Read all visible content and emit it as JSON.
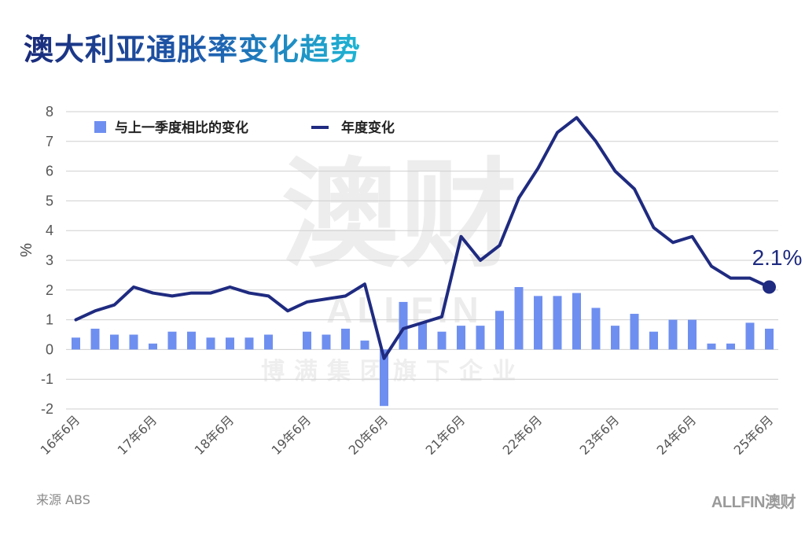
{
  "title": "澳大利亚通胀率变化趋势",
  "source": "来源 ABS",
  "brand": "ALLFIN澳财",
  "watermark": {
    "main": "澳财",
    "sub": "ALLFIN",
    "tagline": "博满集团旗下企业"
  },
  "chart_data": {
    "type": "bar+line",
    "ylabel": "%",
    "ylim": [
      -2,
      8
    ],
    "yticks": [
      -2,
      -1,
      0,
      1,
      2,
      3,
      4,
      5,
      6,
      7,
      8
    ],
    "grid": true,
    "legend_position": "top-left",
    "x_tick_labels": [
      "16年6月",
      "17年6月",
      "18年6月",
      "19年6月",
      "20年6月",
      "21年6月",
      "22年6月",
      "23年6月",
      "24年6月",
      "25年6月"
    ],
    "series": [
      {
        "name": "与上一季度相比的变化",
        "type": "bar",
        "color": "#6f8ff0",
        "values": [
          0.4,
          0.7,
          0.5,
          0.5,
          0.2,
          0.6,
          0.6,
          0.4,
          0.4,
          0.4,
          0.5,
          null,
          0.6,
          0.5,
          0.7,
          0.3,
          -1.9,
          1.6,
          0.9,
          0.6,
          0.8,
          0.8,
          1.3,
          2.1,
          1.8,
          1.8,
          1.9,
          1.4,
          0.8,
          1.2,
          0.6,
          1.0,
          1.0,
          0.2,
          0.2,
          0.9,
          0.7
        ]
      },
      {
        "name": "年度变化",
        "type": "line",
        "color": "#1f2b80",
        "values": [
          1.0,
          1.3,
          1.5,
          2.1,
          1.9,
          1.8,
          1.9,
          1.9,
          2.1,
          1.9,
          1.8,
          1.3,
          1.6,
          1.7,
          1.8,
          2.2,
          -0.3,
          0.7,
          0.9,
          1.1,
          3.8,
          3.0,
          3.5,
          5.1,
          6.1,
          7.3,
          7.8,
          7.0,
          6.0,
          5.4,
          4.1,
          3.6,
          3.8,
          2.8,
          2.4,
          2.4,
          2.1
        ]
      }
    ],
    "annotation": {
      "text": "2.1%",
      "series": "年度变化",
      "index": 36
    }
  }
}
